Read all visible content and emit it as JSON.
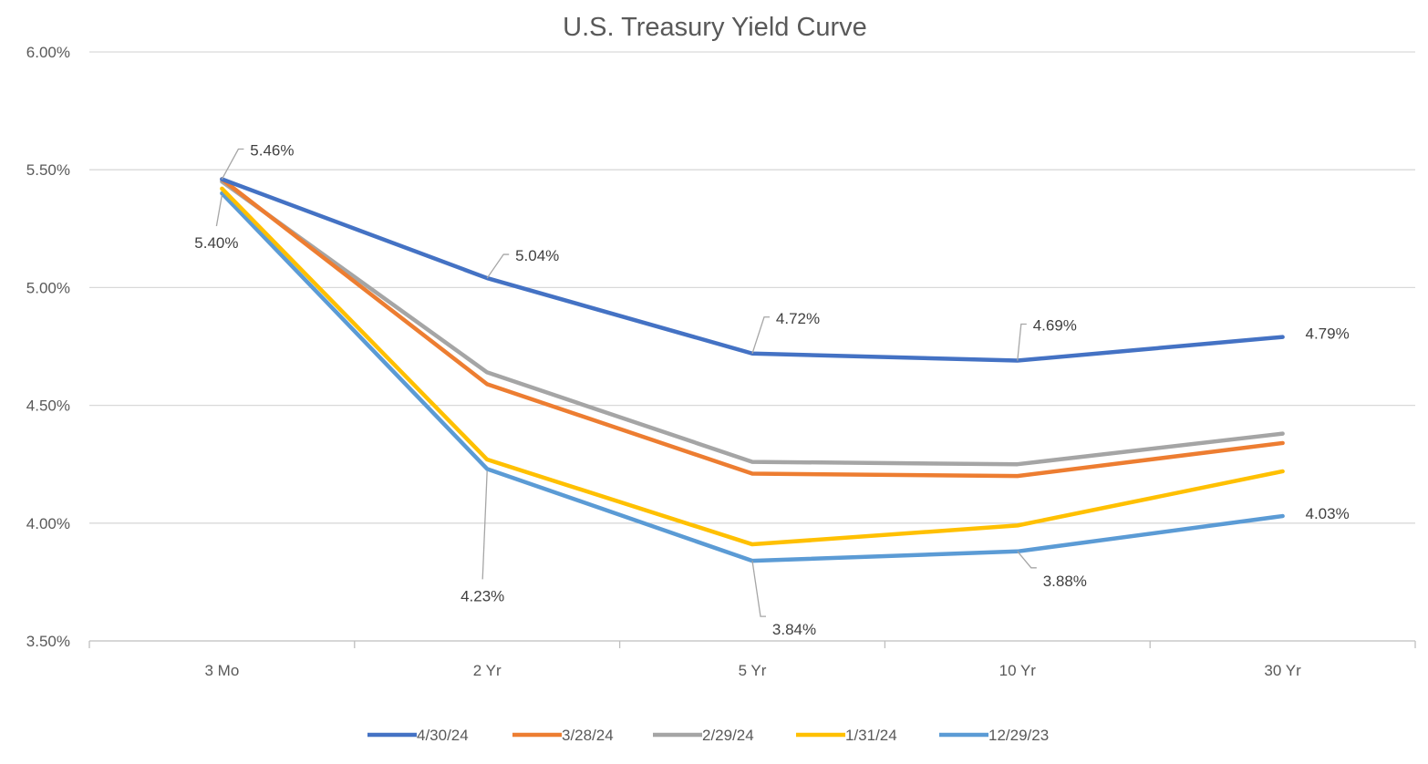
{
  "chart_data": {
    "type": "line",
    "title": "U.S. Treasury Yield Curve",
    "xlabel": "",
    "ylabel": "",
    "categories": [
      "3 Mo",
      "2 Yr",
      "5 Yr",
      "10 Yr",
      "30 Yr"
    ],
    "ylim": [
      3.5,
      6.0
    ],
    "yticks": [
      "3.50%",
      "4.00%",
      "4.50%",
      "5.00%",
      "5.50%",
      "6.00%"
    ],
    "ytick_values": [
      3.5,
      4.0,
      4.5,
      5.0,
      5.5,
      6.0
    ],
    "grid": true,
    "legend_position": "bottom",
    "series": [
      {
        "name": "4/30/24",
        "color": "#4472C4",
        "values": [
          5.46,
          5.04,
          4.72,
          4.69,
          4.79
        ],
        "labels": [
          "5.46%",
          "5.04%",
          "4.72%",
          "4.69%",
          "4.79%"
        ]
      },
      {
        "name": "3/28/24",
        "color": "#ED7D31",
        "values": [
          5.46,
          4.59,
          4.21,
          4.2,
          4.34
        ]
      },
      {
        "name": "2/29/24",
        "color": "#A5A5A5",
        "values": [
          5.45,
          4.64,
          4.26,
          4.25,
          4.38
        ]
      },
      {
        "name": "1/31/24",
        "color": "#FFC000",
        "values": [
          5.42,
          4.27,
          3.91,
          3.99,
          4.22
        ]
      },
      {
        "name": "12/29/23",
        "color": "#5B9BD5",
        "values": [
          5.4,
          4.23,
          3.84,
          3.88,
          4.03
        ],
        "labels": [
          "5.40%",
          "4.23%",
          "3.84%",
          "3.88%",
          "4.03%"
        ]
      }
    ]
  }
}
